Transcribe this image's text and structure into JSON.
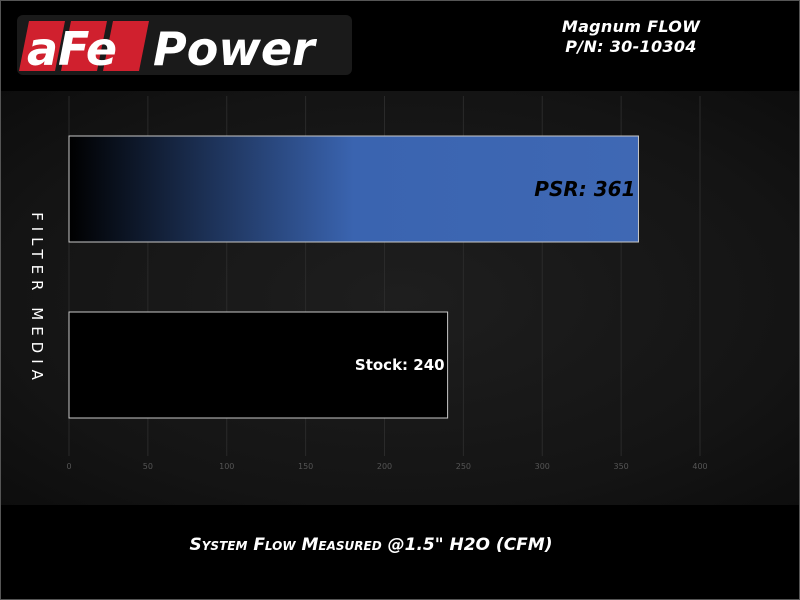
{
  "brand": {
    "logo_text": "aFePower",
    "accent": "#d0202e"
  },
  "product": {
    "name": "Magnum FLOW",
    "part_number": "P/N: 30-10304"
  },
  "chart_data": {
    "type": "bar",
    "orientation": "horizontal",
    "categories": [
      "PSR",
      "Stock"
    ],
    "values": [
      361,
      240
    ],
    "data_labels": [
      "PSR: 361",
      "Stock: 240"
    ],
    "colors": [
      "#3a64b0",
      "#000000"
    ],
    "xlabel": "System Flow Measured @1.5\" H2O (CFM)",
    "ylabel": "FILTER MEDIA",
    "xlim": [
      0,
      400
    ],
    "xticks": [
      "0",
      "50",
      "100",
      "150",
      "200",
      "250",
      "300",
      "350",
      "400"
    ],
    "grid": true
  }
}
